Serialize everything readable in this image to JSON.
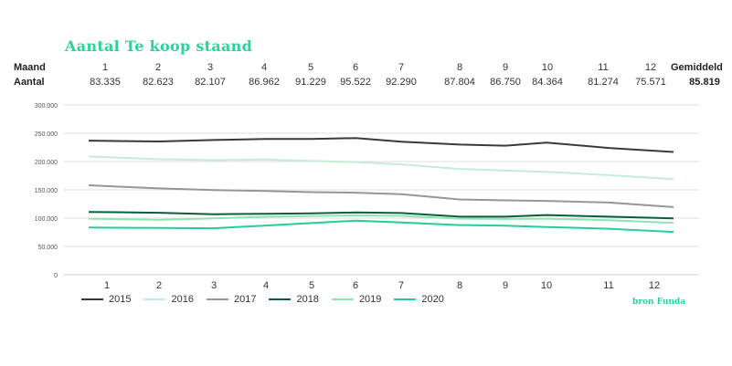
{
  "title": "Aantal Te koop staand",
  "table": {
    "row1_label": "Maand",
    "row2_label": "Aantal",
    "avg_header": "Gemiddeld",
    "avg_value": "85.819",
    "months": [
      "1",
      "2",
      "3",
      "4",
      "5",
      "6",
      "7",
      "8",
      "9",
      "10",
      "11",
      "12"
    ],
    "values": [
      "83.335",
      "82.623",
      "82.107",
      "86.962",
      "91.229",
      "95.522",
      "92.290",
      "87.804",
      "86.750",
      "84.364",
      "81.274",
      "75.571"
    ]
  },
  "source": "bron Funda",
  "colors": {
    "2015": "#3a3a3a",
    "2016": "#c5ecd9",
    "2017": "#969696",
    "2018": "#0b5e3a",
    "2019": "#8de6b2",
    "2020": "#25cf92"
  },
  "chart_data": {
    "type": "line",
    "x": [
      1,
      2,
      3,
      4,
      5,
      6,
      7,
      8,
      9,
      10,
      11,
      12
    ],
    "x_tick_labels": [
      "1",
      "2",
      "3",
      "4",
      "5",
      "6",
      "7",
      "8",
      "9",
      "10",
      "11",
      "12"
    ],
    "ylim": [
      0,
      300000
    ],
    "y_ticks": [
      0,
      50000,
      100000,
      150000,
      200000,
      250000,
      300000
    ],
    "y_tick_labels": [
      "0",
      "50.000",
      "100.000",
      "150.000",
      "200.000",
      "250.000",
      "300.000"
    ],
    "grid": true,
    "legend_position": "bottom-left",
    "series": [
      {
        "name": "2015",
        "values": [
          237000,
          235500,
          238000,
          240000,
          240000,
          241500,
          235000,
          230000,
          228000,
          233500,
          224000,
          217000
        ]
      },
      {
        "name": "2016",
        "values": [
          209000,
          204000,
          202500,
          203500,
          201000,
          199000,
          195000,
          187000,
          184000,
          182000,
          176000,
          169000
        ]
      },
      {
        "name": "2017",
        "values": [
          158000,
          152500,
          149500,
          148000,
          146000,
          145000,
          142500,
          133000,
          131500,
          130500,
          127500,
          119500
        ]
      },
      {
        "name": "2018",
        "values": [
          111000,
          109500,
          107000,
          107500,
          108500,
          110000,
          109000,
          102500,
          102500,
          105500,
          102500,
          99500
        ]
      },
      {
        "name": "2019",
        "values": [
          99000,
          97000,
          99500,
          102500,
          103500,
          105000,
          104000,
          99000,
          98500,
          99000,
          96500,
          91500
        ]
      },
      {
        "name": "2020",
        "values": [
          83335,
          82623,
          82107,
          86962,
          91229,
          95522,
          92290,
          87804,
          86750,
          84364,
          81274,
          75571
        ]
      }
    ]
  }
}
